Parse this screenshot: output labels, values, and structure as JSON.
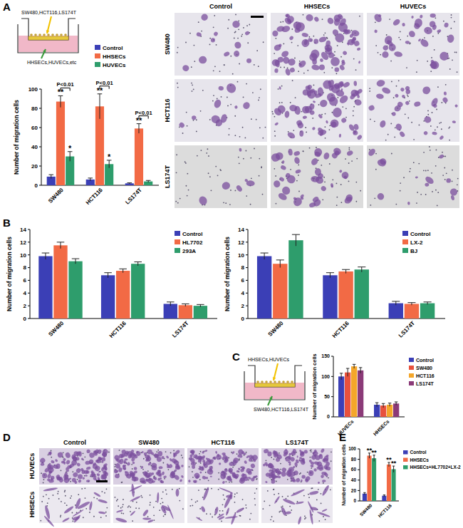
{
  "figure": {
    "panel_labels": [
      "A",
      "B",
      "C",
      "D",
      "E"
    ],
    "schematics": [
      {
        "top": "SW480,HCT116,LS174T",
        "bottom": "HHSECs,HUVECs,etc"
      },
      {
        "top": "HHSECs,HUVECs",
        "bottom": "SW480,HCT116,LS174T"
      }
    ],
    "micrographs": [
      {
        "columns": [
          "Control",
          "HHSECs",
          "HUVECs"
        ],
        "rows": [
          "SW480",
          "HCT116",
          "LS174T"
        ]
      },
      {
        "columns": [
          "Control",
          "SW480",
          "HCT116",
          "LS174T"
        ],
        "rows": [
          "HUVECs",
          "HHSECs"
        ]
      }
    ]
  },
  "chart_data": [
    {
      "type": "bar",
      "y_label": "Number of migration cells",
      "categories": [
        "SW480",
        "HCT116",
        "LS174T"
      ],
      "series": [
        {
          "name": "Control",
          "color": "#3b3fb6",
          "values": [
            9,
            6,
            2
          ],
          "errors": [
            2,
            1.5,
            0.5
          ]
        },
        {
          "name": "HHSECs",
          "color": "#f26a45",
          "values": [
            87,
            82,
            59
          ],
          "errors": [
            6,
            13,
            5
          ]
        },
        {
          "name": "HUVECs",
          "color": "#2e9d6c",
          "values": [
            30,
            22,
            4
          ],
          "errors": [
            5,
            4,
            1
          ]
        }
      ],
      "ylim": [
        0,
        100
      ],
      "yticks": [
        0,
        20,
        40,
        60,
        80,
        100
      ],
      "legend": "top",
      "annotations": [
        {
          "text": "**",
          "category": 0,
          "series": 1
        },
        {
          "text": "**",
          "category": 1,
          "series": 1
        },
        {
          "text": "**",
          "category": 2,
          "series": 1
        },
        {
          "text": "*",
          "category": 0,
          "series": 2
        },
        {
          "text": "*",
          "category": 1,
          "series": 2
        }
      ],
      "brackets": [
        {
          "text": "P<0.01",
          "category": 0,
          "series": [
            1,
            2
          ]
        },
        {
          "text": "P<0.01",
          "category": 1,
          "series": [
            1,
            2
          ]
        },
        {
          "text": "P<0.01",
          "category": 2,
          "series": [
            1,
            2
          ]
        }
      ]
    },
    {
      "type": "bar",
      "y_label": "Number of migration cells",
      "categories": [
        "SW480",
        "HCT116",
        "LS174T"
      ],
      "series": [
        {
          "name": "Control",
          "color": "#3b3fb6",
          "values": [
            9.8,
            6.8,
            2.3
          ],
          "errors": [
            0.5,
            0.4,
            0.3
          ]
        },
        {
          "name": "HL7702",
          "color": "#f26a45",
          "values": [
            11.5,
            7.5,
            2.1
          ],
          "errors": [
            0.5,
            0.3,
            0.2
          ]
        },
        {
          "name": "293A",
          "color": "#2e9d6c",
          "values": [
            9.0,
            8.6,
            2.0
          ],
          "errors": [
            0.4,
            0.3,
            0.2
          ]
        }
      ],
      "ylim": [
        0,
        14
      ],
      "yticks": [
        0,
        2,
        4,
        6,
        8,
        10,
        12,
        14
      ],
      "legend": "top-right"
    },
    {
      "type": "bar",
      "y_label": "Number of migration cells",
      "categories": [
        "SW480",
        "HCT116",
        "LS174T"
      ],
      "series": [
        {
          "name": "Control",
          "color": "#3b3fb6",
          "values": [
            9.8,
            6.8,
            2.4
          ],
          "errors": [
            0.5,
            0.4,
            0.3
          ]
        },
        {
          "name": "LX-2",
          "color": "#f26a45",
          "values": [
            8.6,
            7.4,
            2.3
          ],
          "errors": [
            0.6,
            0.3,
            0.2
          ]
        },
        {
          "name": "BJ",
          "color": "#2e9d6c",
          "values": [
            12.3,
            7.7,
            2.4
          ],
          "errors": [
            0.9,
            0.4,
            0.2
          ]
        }
      ],
      "ylim": [
        0,
        14
      ],
      "yticks": [
        0,
        2,
        4,
        6,
        8,
        10,
        12,
        14
      ],
      "legend": "top-right"
    },
    {
      "type": "bar",
      "y_label": "Number of migration cells",
      "categories": [
        "HUVECs",
        "HHSECs"
      ],
      "series": [
        {
          "name": "Control",
          "color": "#3b3fb6",
          "values": [
            100,
            30
          ],
          "errors": [
            8,
            5
          ]
        },
        {
          "name": "SW480",
          "color": "#e8513c",
          "values": [
            110,
            28
          ],
          "errors": [
            10,
            5
          ]
        },
        {
          "name": "HCT116",
          "color": "#f4a62a",
          "values": [
            125,
            30
          ],
          "errors": [
            5,
            4
          ]
        },
        {
          "name": "LS174T",
          "color": "#8b3a78",
          "values": [
            115,
            33
          ],
          "errors": [
            7,
            4
          ]
        }
      ],
      "ylim": [
        0,
        150
      ],
      "yticks": [
        0,
        50,
        100,
        150
      ],
      "legend": "right"
    },
    {
      "type": "bar",
      "y_label": "Number of migration cells",
      "categories": [
        "SW480",
        "HCT116"
      ],
      "series": [
        {
          "name": "Control",
          "color": "#3b3fb6",
          "values": [
            14,
            10
          ],
          "errors": [
            2,
            1.5
          ]
        },
        {
          "name": "HHSECs",
          "color": "#f26a45",
          "values": [
            87,
            70
          ],
          "errors": [
            5,
            4
          ]
        },
        {
          "name": "HHSECs+HL7702+LX-2",
          "color": "#2e9d6c",
          "values": [
            82,
            61
          ],
          "errors": [
            6,
            6
          ]
        }
      ],
      "ylim": [
        0,
        100
      ],
      "yticks": [
        0,
        20,
        40,
        60,
        80,
        100
      ],
      "legend": "right",
      "annotations": [
        {
          "text": "**",
          "category": 0,
          "series": 1
        },
        {
          "text": "**",
          "category": 1,
          "series": 1
        },
        {
          "text": "**",
          "category": 0,
          "series": 2
        },
        {
          "text": "**",
          "category": 1,
          "series": 2
        }
      ]
    }
  ]
}
